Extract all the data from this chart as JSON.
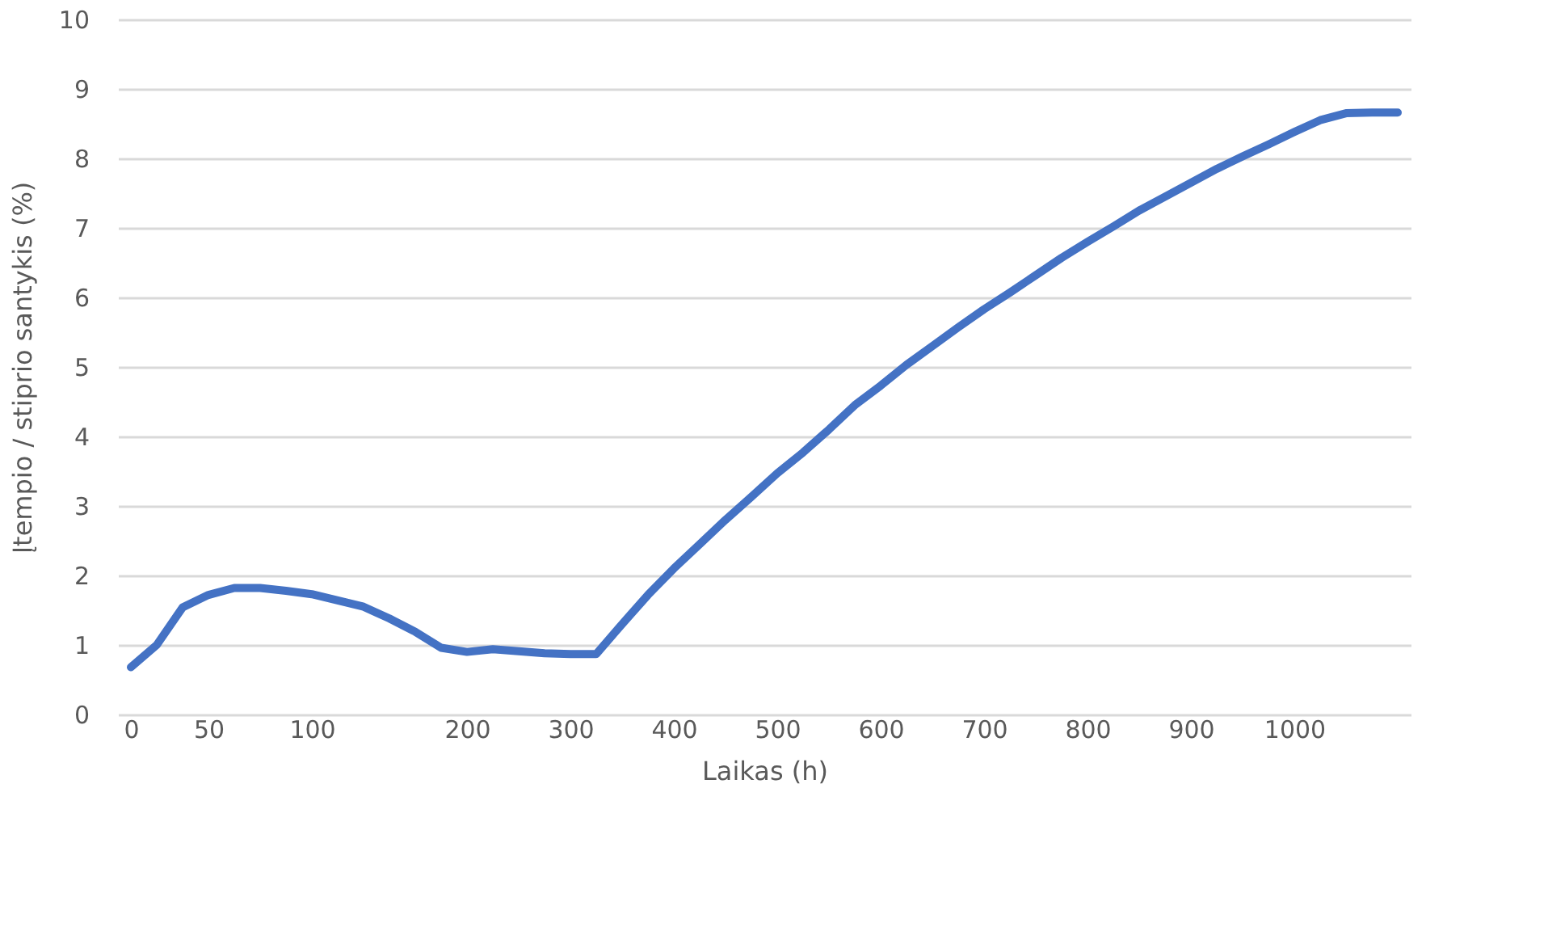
{
  "chart_data": {
    "type": "line",
    "xlabel": "Laikas (h)",
    "ylabel": "Įtempio / stiprio santykis (%)",
    "categories": [
      "0",
      null,
      null,
      "50",
      null,
      null,
      null,
      "100",
      null,
      null,
      null,
      null,
      null,
      "200",
      null,
      null,
      null,
      "300",
      null,
      null,
      null,
      "400",
      null,
      null,
      null,
      "500",
      null,
      null,
      null,
      "600",
      null,
      null,
      null,
      "700",
      null,
      null,
      null,
      "800",
      null,
      null,
      null,
      "900",
      null,
      null,
      null,
      "1000",
      null,
      null,
      null,
      null
    ],
    "series": [
      {
        "color": "#4472c4",
        "values": [
          0.68,
          1.0,
          1.54,
          1.72,
          1.82,
          1.82,
          1.78,
          1.73,
          1.64,
          1.55,
          1.38,
          1.19,
          0.96,
          0.9,
          0.94,
          0.91,
          0.88,
          0.87,
          0.87,
          1.3,
          1.72,
          2.1,
          2.45,
          2.8,
          3.13,
          3.47,
          3.77,
          4.1,
          4.45,
          4.73,
          5.03,
          5.3,
          5.57,
          5.83,
          6.07,
          6.32,
          6.57,
          6.8,
          7.02,
          7.25,
          7.45,
          7.65,
          7.85,
          8.03,
          8.2,
          8.38,
          8.55,
          8.65,
          8.66,
          8.66
        ]
      }
    ],
    "ylim": [
      0,
      10
    ],
    "yticks": [
      0,
      1,
      2,
      3,
      4,
      5,
      6,
      7,
      8,
      9,
      10
    ],
    "grid": "y",
    "legend": false,
    "line_style": "solid",
    "marker": "none"
  }
}
